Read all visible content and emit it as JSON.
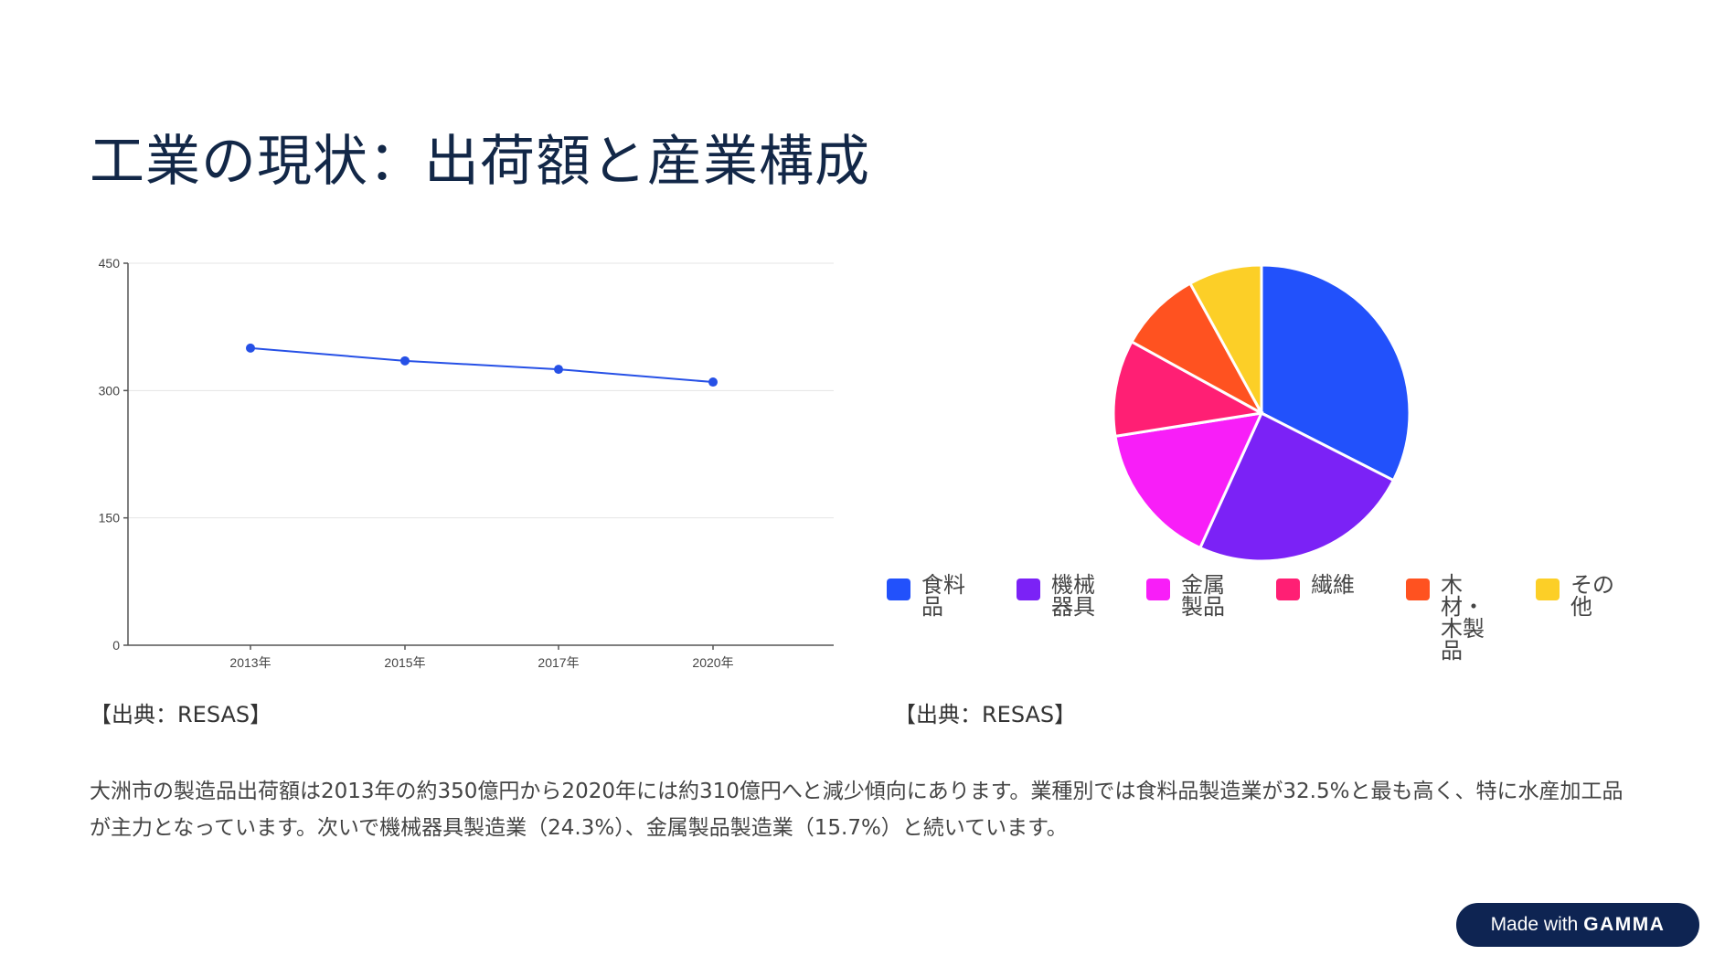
{
  "page": {
    "title": "工業の現状：出荷額と産業構成",
    "paragraph": "大洲市の製造品出荷額は2013年の約350億円から2020年には約310億円へと減少傾向にあります。業種別では食料品製造業が32.5%と最も高く、特に水産加工品が主力となっています。次いで機械器具製造業（24.3%）、金属製品製造業（15.7%）と続いています。"
  },
  "sources": {
    "left": "【出典：RESAS】",
    "right": "【出典：RESAS】"
  },
  "badge": {
    "prefix": "Made with",
    "brand": "GAMMA"
  },
  "colors": {
    "line": "#2650e6",
    "slices": [
      "#2251fb",
      "#7b22f6",
      "#f81ef8",
      "#ff1f74",
      "#ff5220",
      "#fccf27"
    ]
  },
  "chart_data": [
    {
      "type": "line",
      "x": [
        "2013年",
        "2015年",
        "2017年",
        "2020年"
      ],
      "series": [
        {
          "values": [
            350,
            335,
            325,
            310
          ]
        }
      ],
      "ylim": [
        0,
        450
      ],
      "yticks": [
        "0",
        "150",
        "300",
        "450"
      ],
      "grid": true
    },
    {
      "type": "pie",
      "categories": [
        "食料品",
        "機械器具",
        "金属製品",
        "繊維",
        "木材・木製品",
        "その他"
      ],
      "values": [
        32.5,
        24.3,
        15.7,
        10.5,
        9.0,
        8.0
      ],
      "legend": "bottom"
    }
  ]
}
